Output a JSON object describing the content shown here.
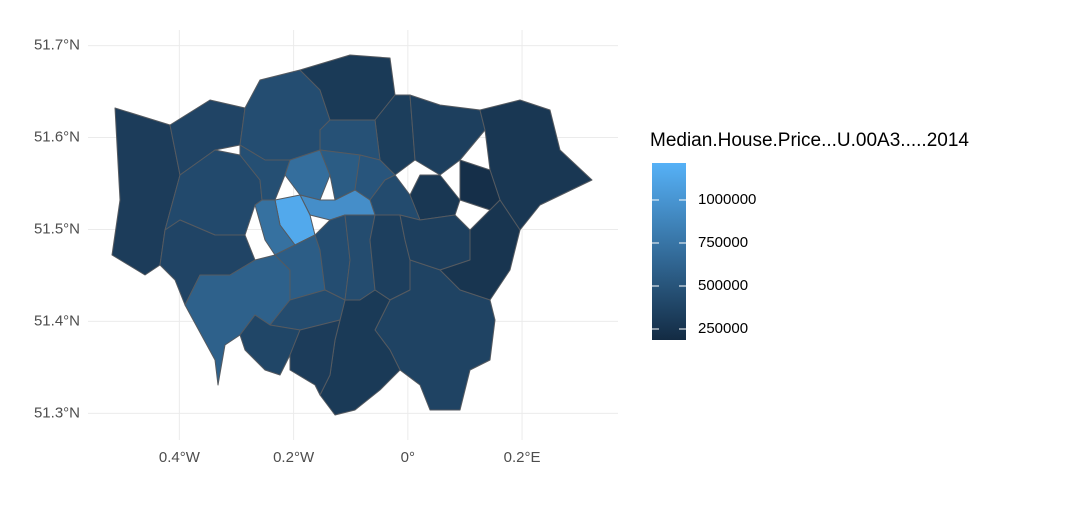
{
  "chart_data": {
    "type": "choropleth",
    "legend_title": "Median.House.Price...U.00A3.....2014",
    "values": [
      320000,
      380000,
      450000,
      300000,
      330000,
      340000,
      280000,
      220000,
      280000,
      420000,
      460000,
      480000,
      700000,
      560000,
      510000,
      430000,
      950000,
      1150000,
      720000,
      380000,
      600000,
      570000,
      450000,
      440000,
      340000,
      340000,
      260000,
      370000,
      300000,
      440000,
      390000,
      320000
    ],
    "colors": {
      "low": "#132b43",
      "high": "#56b1f7"
    },
    "clim": [
      186000,
      1215000
    ],
    "colorbar_ticks": [
      250000,
      500000,
      750000,
      1000000
    ],
    "xlim": [
      -0.56,
      0.368
    ],
    "ylim": [
      51.271,
      51.717
    ],
    "xticks": [
      {
        "value": -0.4,
        "label": "0.4°W"
      },
      {
        "value": -0.2,
        "label": "0.2°W"
      },
      {
        "value": 0,
        "label": "0°"
      },
      {
        "value": 0.2,
        "label": "0.2°E"
      }
    ],
    "yticks": [
      {
        "value": 51.3,
        "label": "51.3°N"
      },
      {
        "value": 51.4,
        "label": "51.4°N"
      },
      {
        "value": 51.5,
        "label": "51.5°N"
      },
      {
        "value": 51.6,
        "label": "51.6°N"
      },
      {
        "value": 51.7,
        "label": "51.7°N"
      }
    ],
    "grid": true
  }
}
